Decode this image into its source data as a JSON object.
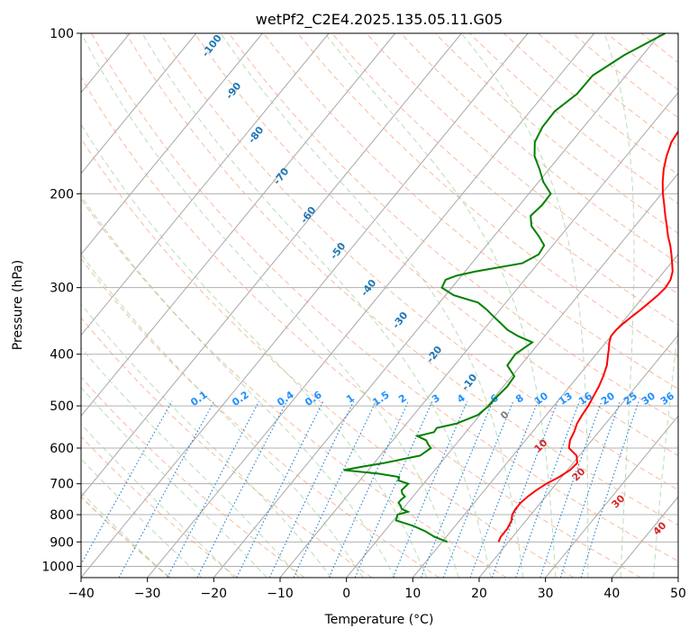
{
  "chart_data": {
    "type": "line",
    "title": "wetPf2_C2E4.2025.135.05.11.G05",
    "xlabel": "Temperature (°C)",
    "ylabel": "Pressure (hPa)",
    "xlim": [
      -40,
      50
    ],
    "ylim": [
      1050,
      100
    ],
    "y_scale": "log",
    "grid": true,
    "x_ticks": [
      -40,
      -30,
      -20,
      -10,
      0,
      10,
      20,
      30,
      40,
      50
    ],
    "y_ticks": [
      100,
      200,
      300,
      400,
      500,
      600,
      700,
      800,
      900,
      1000
    ],
    "colors": {
      "temperature": "#ff0000",
      "dewpoint": "#008000",
      "dry_adiabat_labels": "#1f77b4",
      "mixing_ratio_labels": "#1e90ff",
      "moist_adiabat_labels": "#d62728"
    },
    "series": [
      {
        "pressure": [
          900,
          880,
          850,
          820,
          800,
          790,
          780,
          760,
          740,
          720,
          700,
          680,
          660,
          640,
          620,
          600,
          580,
          560,
          540,
          520,
          500,
          480,
          460,
          440,
          420,
          400,
          390,
          380,
          370,
          360,
          350,
          340,
          330,
          320,
          310,
          300,
          290,
          280,
          270,
          260,
          250,
          240,
          230,
          220,
          210,
          200,
          190,
          180,
          170,
          160,
          150,
          145,
          140,
          135,
          130,
          125,
          120,
          115,
          110,
          105,
          100
        ],
        "temperature": [
          18.5,
          18.2,
          18.2,
          17.8,
          17.2,
          17.1,
          17.0,
          17.0,
          17.3,
          17.8,
          18.5,
          19.6,
          20.4,
          20.6,
          19.6,
          17.5,
          16.7,
          16.3,
          15.7,
          15.4,
          15.2,
          14.8,
          14.4,
          13.8,
          13.0,
          11.8,
          11.2,
          10.5,
          10.0,
          10.0,
          10.3,
          10.7,
          11.2,
          11.6,
          12.0,
          12.2,
          12.0,
          11.3,
          10.2,
          9.0,
          7.7,
          6.2,
          4.8,
          3.3,
          1.8,
          0.2,
          -1.3,
          -2.7,
          -3.9,
          -4.9,
          -5.3,
          -5.0,
          -4.5,
          -4.0,
          -3.8,
          -3.4,
          -2.7,
          -2.0,
          -1.3,
          -0.5,
          0.3
        ]
      },
      {
        "pressure": [
          900,
          880,
          860,
          840,
          820,
          800,
          790,
          780,
          770,
          760,
          750,
          740,
          730,
          720,
          700,
          690,
          680,
          670,
          660,
          650,
          640,
          620,
          600,
          590,
          580,
          570,
          560,
          550,
          540,
          520,
          500,
          480,
          460,
          440,
          420,
          400,
          380,
          370,
          360,
          350,
          340,
          330,
          320,
          310,
          300,
          290,
          285,
          280,
          270,
          260,
          250,
          240,
          230,
          220,
          210,
          200,
          190,
          180,
          170,
          160,
          150,
          140,
          130,
          120,
          110,
          100
        ],
        "dewpoint": [
          10.8,
          8.2,
          6.2,
          3.7,
          0.4,
          -0.1,
          1.1,
          -0.2,
          -0.7,
          -1.4,
          -1.4,
          -1.2,
          -2.0,
          -2.5,
          -2.3,
          -4.2,
          -4.5,
          -8.1,
          -13.7,
          -11.3,
          -8.5,
          -4.0,
          -3.3,
          -4.2,
          -5.0,
          -6.8,
          -4.8,
          -4.9,
          -2.5,
          -0.3,
          0.2,
          0.3,
          0.6,
          0.4,
          -2.0,
          -2.2,
          -1.1,
          -4.0,
          -6.4,
          -8.2,
          -10.1,
          -12.0,
          -14.2,
          -18.8,
          -21.5,
          -21.9,
          -20.8,
          -18.5,
          -12.4,
          -11.0,
          -11.3,
          -13.3,
          -15.6,
          -17.0,
          -16.6,
          -16.7,
          -19.3,
          -21.4,
          -23.8,
          -25.5,
          -26.2,
          -26.3,
          -25.1,
          -25.0,
          -22.8,
          -19.3
        ]
      }
    ]
  }
}
